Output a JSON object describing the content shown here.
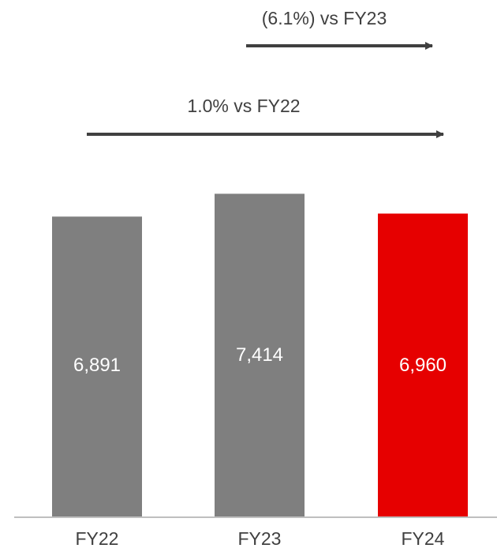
{
  "chart_data": {
    "type": "bar",
    "title": "",
    "xlabel": "",
    "ylabel": "",
    "categories": [
      "FY22",
      "FY23",
      "FY24"
    ],
    "values": [
      6891,
      7414,
      6960
    ],
    "data_labels": [
      "6,891",
      "7,414",
      "6,960"
    ],
    "colors": [
      "#7f7f7f",
      "#7f7f7f",
      "#e60000"
    ],
    "grid": false,
    "legend": "none",
    "annotations": [
      {
        "text": "(6.1%) vs FY23",
        "from": "FY23",
        "to": "FY24"
      },
      {
        "text": "1.0% vs FY22",
        "from": "FY22",
        "to": "FY24"
      }
    ]
  },
  "colors": {
    "bar_default": "#7f7f7f",
    "bar_highlight": "#e60000",
    "arrow": "#404040",
    "baseline": "#bfbfbf",
    "label_text": "#404040",
    "data_label_text": "#ffffff"
  }
}
